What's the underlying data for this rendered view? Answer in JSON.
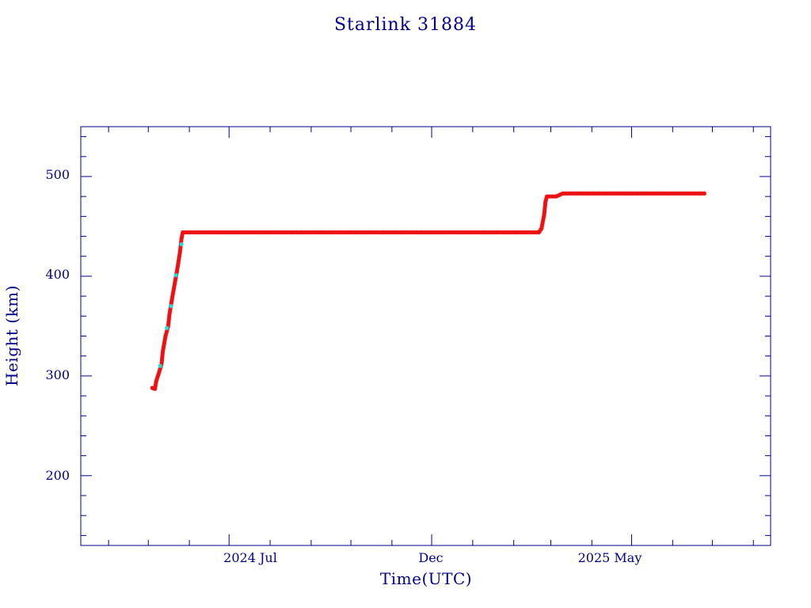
{
  "chart_data": {
    "type": "scatter",
    "title": "Starlink 31884",
    "xlabel": "Time(UTC)",
    "ylabel": "Height (km)",
    "x_ticks": [
      "2024 Jul",
      "Dec",
      "2025 May"
    ],
    "y_ticks": [
      "200",
      "300",
      "400",
      "500"
    ],
    "ylim": [
      130,
      550
    ],
    "xlim": [
      "2024-03-11",
      "2025-08-14"
    ],
    "grid": false,
    "colors": {
      "axis": "#00008b",
      "points": "#ee1111",
      "points_alt": "#22dddd"
    },
    "series": [
      {
        "values": [
          [
            "2024-05-04",
            288
          ],
          [
            "2024-05-06",
            287
          ],
          [
            "2024-05-07",
            295
          ],
          [
            "2024-05-09",
            303
          ],
          [
            "2024-05-11",
            312
          ],
          [
            "2024-05-12",
            325
          ],
          [
            "2024-05-14",
            340
          ],
          [
            "2024-05-16",
            350
          ],
          [
            "2024-05-17",
            362
          ],
          [
            "2024-05-19",
            378
          ],
          [
            "2024-05-21",
            393
          ],
          [
            "2024-05-23",
            408
          ],
          [
            "2024-05-25",
            425
          ],
          [
            "2024-05-26",
            437
          ],
          [
            "2024-05-27",
            444
          ],
          [
            "2024-06-10",
            444
          ],
          [
            "2024-07-01",
            444
          ],
          [
            "2024-08-01",
            444
          ],
          [
            "2024-09-01",
            444
          ],
          [
            "2024-10-01",
            444
          ],
          [
            "2024-11-01",
            444
          ],
          [
            "2024-12-01",
            444
          ],
          [
            "2025-01-01",
            444
          ],
          [
            "2025-02-01",
            444
          ],
          [
            "2025-02-20",
            444
          ],
          [
            "2025-02-22",
            448
          ],
          [
            "2025-02-24",
            462
          ],
          [
            "2025-02-25",
            475
          ],
          [
            "2025-02-26",
            480
          ],
          [
            "2025-03-05",
            480
          ],
          [
            "2025-03-10",
            483
          ],
          [
            "2025-04-01",
            483
          ],
          [
            "2025-05-01",
            483
          ],
          [
            "2025-06-01",
            483
          ],
          [
            "2025-06-25",
            483
          ]
        ]
      },
      {
        "values": [
          [
            "2024-05-10",
            310
          ],
          [
            "2024-05-15",
            348
          ],
          [
            "2024-05-18",
            370
          ],
          [
            "2024-05-22",
            401
          ],
          [
            "2024-05-26",
            432
          ]
        ]
      }
    ]
  }
}
